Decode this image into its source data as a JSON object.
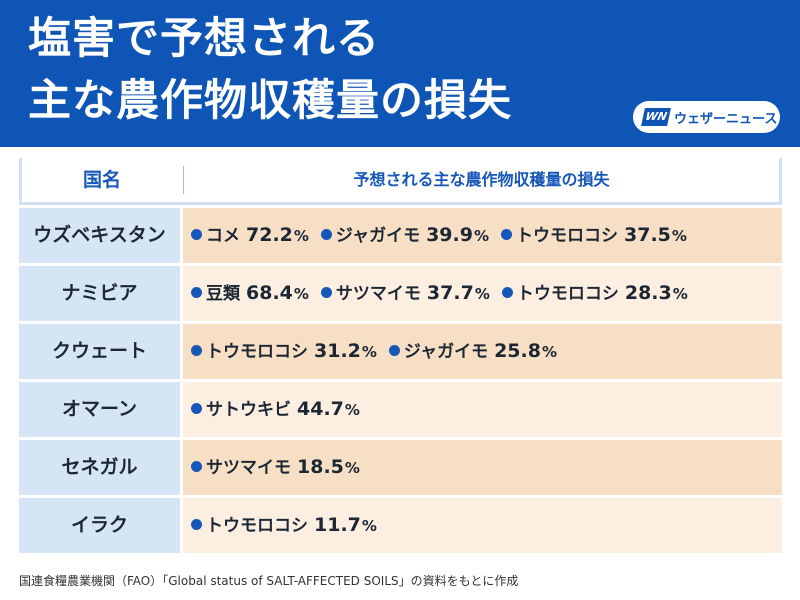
{
  "header": {
    "title_line1": "塩害で予想される",
    "title_line2": "主な農作物収穫量の損失",
    "logo_mark": "WN",
    "logo_text": "ウェザーニュース"
  },
  "table": {
    "col_country": "国名",
    "col_loss": "予想される主な農作物収穫量の損失",
    "rows": [
      {
        "country": "ウズベキスタン",
        "crops": [
          {
            "name": "コメ",
            "value": "72.2",
            "unit": "%"
          },
          {
            "name": "ジャガイモ",
            "value": "39.9",
            "unit": "%"
          },
          {
            "name": "トウモロコシ",
            "value": "37.5",
            "unit": "%"
          }
        ]
      },
      {
        "country": "ナミビア",
        "crops": [
          {
            "name": "豆類",
            "value": "68.4",
            "unit": "%"
          },
          {
            "name": "サツマイモ",
            "value": "37.7",
            "unit": "%"
          },
          {
            "name": "トウモロコシ",
            "value": "28.3",
            "unit": "%"
          }
        ]
      },
      {
        "country": "クウェート",
        "crops": [
          {
            "name": "トウモロコシ",
            "value": "31.2",
            "unit": "%"
          },
          {
            "name": "ジャガイモ",
            "value": "25.8",
            "unit": "%"
          }
        ]
      },
      {
        "country": "オマーン",
        "crops": [
          {
            "name": "サトウキビ",
            "value": "44.7",
            "unit": "%"
          }
        ]
      },
      {
        "country": "セネガル",
        "crops": [
          {
            "name": "サツマイモ",
            "value": "18.5",
            "unit": "%"
          }
        ]
      },
      {
        "country": "イラク",
        "crops": [
          {
            "name": "トウモロコシ",
            "value": "11.7",
            "unit": "%"
          }
        ]
      }
    ]
  },
  "footer": {
    "source": "国連食糧農業機関（FAO）「Global status of SALT-AFFECTED SOILS」の資料をもとに作成"
  },
  "colors": {
    "header_bg": "#0f55b5",
    "accent_blue": "#1657b8",
    "country_cell_bg": "#d6e5f6",
    "row_bg_dark": "#f7dfc5",
    "row_bg_light": "#fcefe2"
  }
}
